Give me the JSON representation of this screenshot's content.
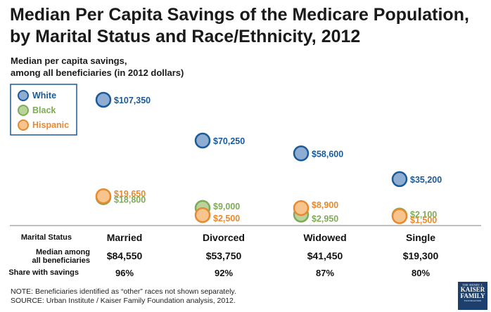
{
  "title": "Median Per Capita Savings of the Medicare Population, by Marital Status and Race/Ethnicity, 2012",
  "subtitle_line1": "Median per capita savings,",
  "subtitle_line2": "among all beneficiaries (in 2012 dollars)",
  "colors": {
    "white_fill": "#8fadd2",
    "white_stroke": "#1b5a99",
    "white_text": "#1b5a99",
    "black_fill": "#b9d39a",
    "black_stroke": "#7eab55",
    "black_text": "#7eab55",
    "hispanic_fill": "#f6c48c",
    "hispanic_stroke": "#e8892f",
    "hispanic_text": "#e8892f"
  },
  "chart_data": {
    "type": "scatter",
    "categories": [
      "Married",
      "Divorced",
      "Widowed",
      "Single"
    ],
    "series": [
      {
        "name": "White",
        "values": [
          107350,
          70250,
          58600,
          35200
        ],
        "labels": [
          "$107,350",
          "$70,250",
          "$58,600",
          "$35,200"
        ]
      },
      {
        "name": "Black",
        "values": [
          18800,
          9000,
          2950,
          2100
        ],
        "labels": [
          "$18,800",
          "$9,000",
          "$2,950",
          "$2,100"
        ]
      },
      {
        "name": "Hispanic",
        "values": [
          19650,
          2500,
          8900,
          1500
        ],
        "labels": [
          "$19,650",
          "$2,500",
          "$8,900",
          "$1,500"
        ]
      }
    ],
    "legend": "top-left",
    "grid": false
  },
  "table": {
    "row1_label": "Marital Status",
    "row2_label_line1": "Median among",
    "row2_label_line2": "all beneficiaries",
    "row3_label": "Share with savings",
    "median": [
      "$84,550",
      "$53,750",
      "$41,450",
      "$19,300"
    ],
    "share": [
      "96%",
      "92%",
      "87%",
      "80%"
    ]
  },
  "note_line1": "NOTE: Beneficiaries identified as “other” races not shown separately.",
  "note_line2": "SOURCE: Urban Institute / Kaiser Family Foundation analysis, 2012.",
  "logo": {
    "line1": "THE HENRY J.",
    "line2": "KAISER",
    "line3": "FAMILY",
    "line4": "FOUNDATION"
  }
}
